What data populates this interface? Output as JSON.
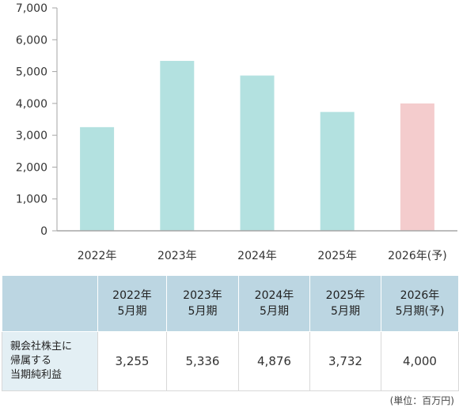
{
  "chart_data": {
    "type": "bar",
    "categories": [
      "2022年",
      "2023年",
      "2024年",
      "2025年",
      "2026年(予)"
    ],
    "values": [
      3255,
      5336,
      4876,
      3732,
      4000
    ],
    "bar_colors": [
      "#b3e1e0",
      "#b3e1e0",
      "#b3e1e0",
      "#b3e1e0",
      "#f4cccd"
    ],
    "ylim": [
      0,
      7000
    ],
    "yticks": [
      "0",
      "1,000",
      "2,000",
      "3,000",
      "4,000",
      "5,000",
      "6,000",
      "7,000"
    ],
    "ytick_values": [
      0,
      1000,
      2000,
      3000,
      4000,
      5000,
      6000,
      7000
    ],
    "gridlines": false,
    "axis_color": "#a6a6a6"
  },
  "table": {
    "headers": [
      {
        "line1": "2022年",
        "line2": "5月期"
      },
      {
        "line1": "2023年",
        "line2": "5月期"
      },
      {
        "line1": "2024年",
        "line2": "5月期"
      },
      {
        "line1": "2025年",
        "line2": "5月期"
      },
      {
        "line1": "2026年",
        "line2": "5月期(予)"
      }
    ],
    "row_label": [
      "親会社株主に",
      "帰属する",
      "当期純利益"
    ],
    "values": [
      "3,255",
      "5,336",
      "4,876",
      "3,732",
      "4,000"
    ]
  },
  "unit_note": "(単位：百万円)"
}
